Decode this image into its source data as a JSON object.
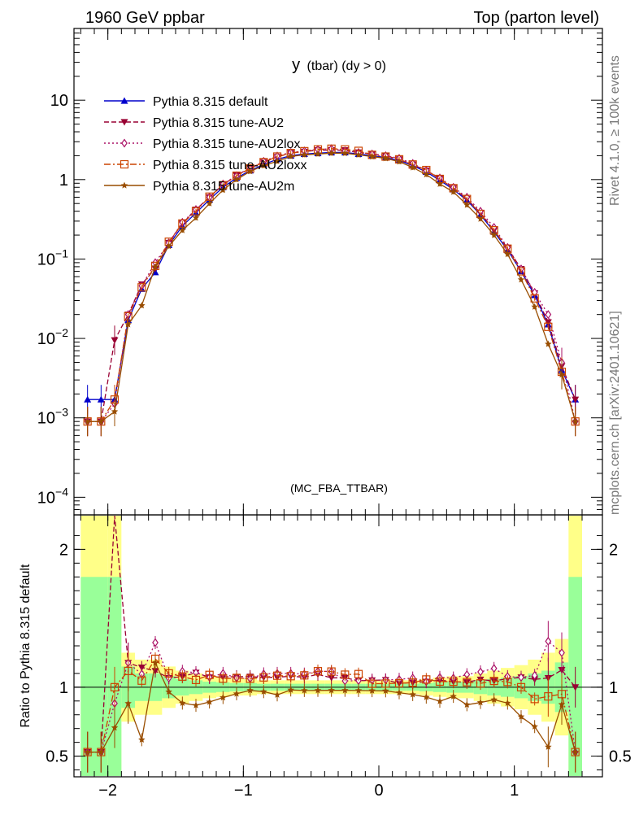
{
  "header": {
    "left": "1960 GeV ppbar",
    "right": "Top (parton level)"
  },
  "side": {
    "rivet": "Rivet 4.1.0, ≥ 100k events",
    "mcplots": "mcplots.cern.ch [arXiv:2401.10621]"
  },
  "plot": {
    "title_main": "y",
    "title_sub": "(tbar) (dy > 0)",
    "watermark": "(MC_FBA_TTBAR)",
    "ratio_ylabel": "Ratio to Pythia 8.315 default"
  },
  "chart_data": {
    "type": "line",
    "xlim": [
      -2.25,
      1.65
    ],
    "ylim_main": [
      6e-05,
      80
    ],
    "ylim_ratio": [
      0.35,
      2.25
    ],
    "yscale_main": "log",
    "x_ticks": [
      -2,
      -1,
      0,
      1
    ],
    "x_tick_labels": [
      "−2",
      "−1",
      "0",
      "1"
    ],
    "y_ticks_main": [
      {
        "v": 10,
        "b": "10",
        "e": ""
      },
      {
        "v": 1,
        "b": "1",
        "e": ""
      },
      {
        "v": 0.1,
        "b": "10",
        "e": "−1"
      },
      {
        "v": 0.01,
        "b": "10",
        "e": "−2"
      },
      {
        "v": 0.001,
        "b": "10",
        "e": "−3"
      },
      {
        "v": 0.0001,
        "b": "10",
        "e": "−4"
      }
    ],
    "y_ticks_ratio": [
      {
        "v": 2,
        "label": "2"
      },
      {
        "v": 1,
        "label": "1"
      },
      {
        "v": 0.5,
        "label": "0.5"
      }
    ],
    "legend_position": "top-left",
    "x": [
      -2.15,
      -2.05,
      -1.95,
      -1.85,
      -1.75,
      -1.65,
      -1.55,
      -1.45,
      -1.35,
      -1.25,
      -1.15,
      -1.05,
      -0.95,
      -0.85,
      -0.75,
      -0.65,
      -0.55,
      -0.45,
      -0.35,
      -0.25,
      -0.15,
      -0.05,
      0.05,
      0.15,
      0.25,
      0.35,
      0.45,
      0.55,
      0.65,
      0.75,
      0.85,
      0.95,
      1.05,
      1.15,
      1.25,
      1.35,
      1.45
    ],
    "series": [
      {
        "name": "Pythia 8.315 default",
        "color": "#0000cc",
        "dash": "",
        "marker": "triangle-up",
        "values": [
          0.0017,
          0.0017,
          0.0017,
          0.017,
          0.042,
          0.068,
          0.15,
          0.26,
          0.38,
          0.56,
          0.8,
          1.05,
          1.3,
          1.55,
          1.8,
          2.0,
          2.1,
          2.15,
          2.2,
          2.2,
          2.1,
          2.0,
          1.9,
          1.75,
          1.5,
          1.25,
          0.98,
          0.75,
          0.55,
          0.36,
          0.22,
          0.13,
          0.07,
          0.035,
          0.015,
          0.004,
          0.0017
        ]
      },
      {
        "name": "Pythia 8.315 tune-AU2",
        "color": "#990033",
        "dash": "6,3",
        "marker": "triangle-down",
        "values": [
          0.0009,
          0.0009,
          0.0095,
          0.02,
          0.048,
          0.076,
          0.16,
          0.28,
          0.42,
          0.6,
          0.86,
          1.13,
          1.4,
          1.66,
          1.93,
          2.16,
          2.25,
          2.35,
          2.35,
          2.35,
          2.2,
          2.1,
          2.0,
          1.8,
          1.55,
          1.3,
          1.03,
          0.78,
          0.57,
          0.38,
          0.23,
          0.138,
          0.075,
          0.037,
          0.016,
          0.0045,
          0.0017
        ]
      },
      {
        "name": "Pythia 8.315 tune-AU2lox",
        "color": "#aa1166",
        "dash": "2,3",
        "marker": "diamond",
        "values": [
          0.0009,
          0.0009,
          0.0015,
          0.02,
          0.046,
          0.09,
          0.16,
          0.29,
          0.42,
          0.6,
          0.88,
          1.12,
          1.38,
          1.7,
          1.98,
          2.2,
          2.3,
          2.4,
          2.45,
          2.3,
          2.2,
          2.1,
          2.0,
          1.85,
          1.6,
          1.3,
          1.05,
          0.8,
          0.6,
          0.4,
          0.25,
          0.14,
          0.075,
          0.038,
          0.02,
          0.005,
          0.0009
        ]
      },
      {
        "name": "Pythia 8.315 tune-AU2loxx",
        "color": "#cc4400",
        "dash": "8,3,2,3",
        "marker": "square",
        "values": [
          0.0009,
          0.0009,
          0.0017,
          0.019,
          0.044,
          0.082,
          0.165,
          0.28,
          0.4,
          0.61,
          0.85,
          1.12,
          1.38,
          1.66,
          1.95,
          2.16,
          2.28,
          2.4,
          2.45,
          2.4,
          2.3,
          2.05,
          1.95,
          1.8,
          1.55,
          1.32,
          1.02,
          0.78,
          0.57,
          0.37,
          0.23,
          0.135,
          0.07,
          0.032,
          0.014,
          0.0038,
          0.0009
        ]
      },
      {
        "name": "Pythia 8.315 tune-AU2m",
        "color": "#994d00",
        "dash": "",
        "marker": "star",
        "values": [
          0.0009,
          0.0009,
          0.0012,
          0.015,
          0.026,
          0.08,
          0.145,
          0.23,
          0.33,
          0.5,
          0.74,
          1.0,
          1.27,
          1.5,
          1.7,
          1.96,
          2.05,
          2.1,
          2.15,
          2.15,
          2.05,
          1.95,
          1.85,
          1.68,
          1.42,
          1.16,
          0.88,
          0.7,
          0.48,
          0.32,
          0.2,
          0.115,
          0.055,
          0.025,
          0.0085,
          0.0035,
          0.0009
        ]
      }
    ],
    "legend_entries": [
      "Pythia 8.315 default",
      "Pythia 8.315 tune-AU2",
      "Pythia 8.315 tune-AU2lox",
      "Pythia 8.315 tune-AU2loxx",
      "Pythia 8.315 tune-AU2m"
    ],
    "bands": {
      "green_half_width": [
        0.8,
        0.8,
        0.8,
        0.15,
        0.1,
        0.1,
        0.08,
        0.06,
        0.05,
        0.04,
        0.035,
        0.03,
        0.03,
        0.025,
        0.025,
        0.025,
        0.025,
        0.025,
        0.025,
        0.025,
        0.025,
        0.025,
        0.025,
        0.025,
        0.025,
        0.03,
        0.035,
        0.04,
        0.04,
        0.05,
        0.06,
        0.07,
        0.08,
        0.1,
        0.12,
        0.18,
        0.8
      ],
      "yellow_half_width": [
        1.4,
        1.4,
        1.4,
        0.25,
        0.2,
        0.2,
        0.15,
        0.12,
        0.1,
        0.08,
        0.07,
        0.06,
        0.06,
        0.05,
        0.05,
        0.05,
        0.05,
        0.05,
        0.05,
        0.05,
        0.05,
        0.05,
        0.05,
        0.05,
        0.05,
        0.06,
        0.07,
        0.08,
        0.08,
        0.1,
        0.12,
        0.14,
        0.16,
        0.2,
        0.25,
        0.35,
        1.4
      ]
    }
  }
}
